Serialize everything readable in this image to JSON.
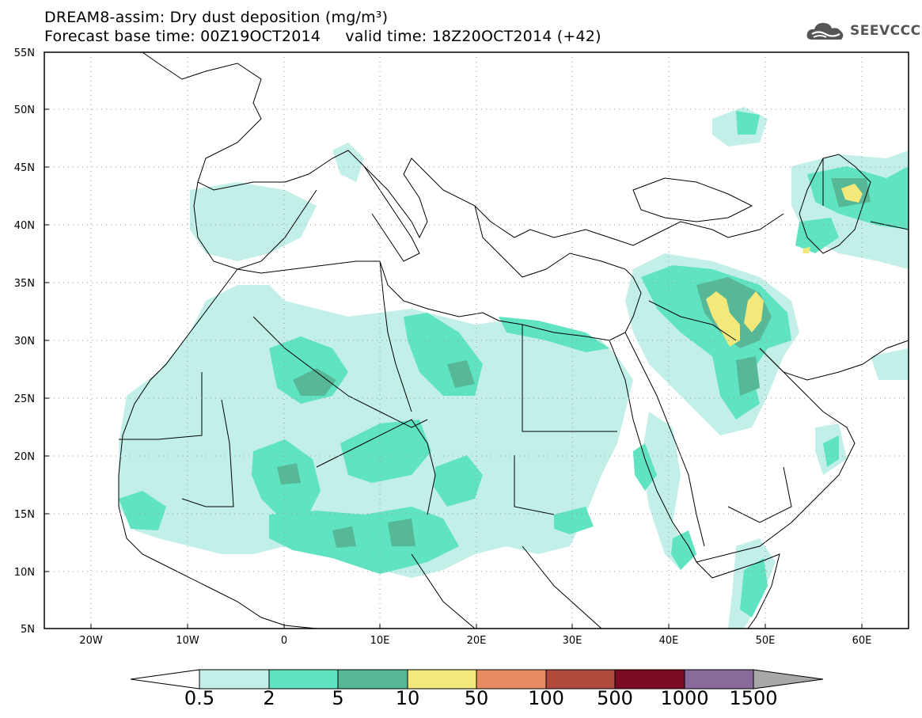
{
  "header": {
    "title_line1": "DREAM8-assim: Dry dust deposition (mg/m³)",
    "title_line2": "Forecast base time: 00Z19OCT2014     valid time: 18Z20OCT2014 (+42)",
    "logo_text": "SEEVCCC"
  },
  "map": {
    "lat_labels": [
      "55N",
      "50N",
      "45N",
      "40N",
      "35N",
      "30N",
      "25N",
      "20N",
      "15N",
      "10N",
      "5N"
    ],
    "lon_labels": [
      "20W",
      "10W",
      "0",
      "10E",
      "20E",
      "30E",
      "40E",
      "50E",
      "60E"
    ]
  },
  "legend": {
    "labels": [
      "0.5",
      "2",
      "5",
      "10",
      "50",
      "100",
      "500",
      "1000",
      "1500"
    ],
    "colors": [
      "#c2f0e8",
      "#5fe3c0",
      "#57b898",
      "#f3e87a",
      "#e98b65",
      "#b04a3c",
      "#7b0a25",
      "#8a6a9a"
    ],
    "below_color": "#ffffff",
    "above_color": "#a8a8a8"
  }
}
